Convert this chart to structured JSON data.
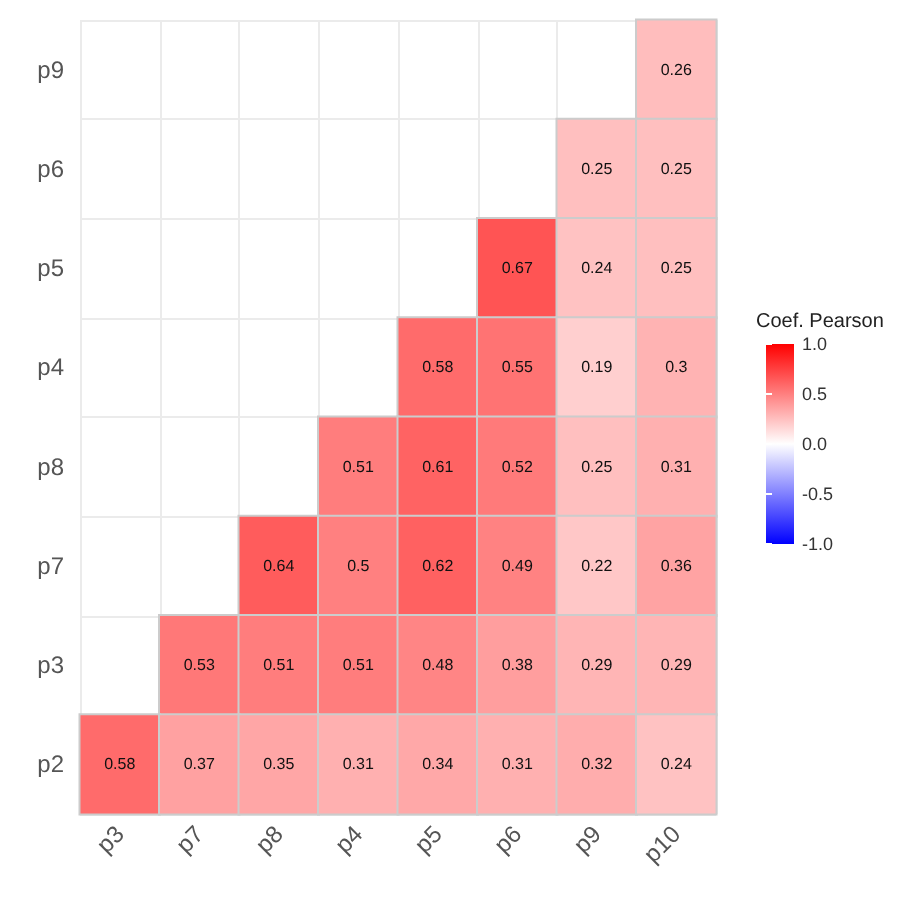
{
  "chart_data": {
    "type": "heatmap",
    "clabel": "Coef. Pearson",
    "categories": [
      "p3",
      "p7",
      "p8",
      "p4",
      "p5",
      "p6",
      "p9",
      "p10"
    ],
    "y_categories": [
      "p9",
      "p6",
      "p5",
      "p4",
      "p8",
      "p7",
      "p3",
      "p2"
    ],
    "cells": [
      [
        null,
        null,
        null,
        null,
        null,
        null,
        null,
        0.26
      ],
      [
        null,
        null,
        null,
        null,
        null,
        null,
        0.25,
        0.25
      ],
      [
        null,
        null,
        null,
        null,
        null,
        0.67,
        0.24,
        0.25
      ],
      [
        null,
        null,
        null,
        null,
        0.58,
        0.55,
        0.19,
        0.3
      ],
      [
        null,
        null,
        null,
        0.51,
        0.61,
        0.52,
        0.25,
        0.31
      ],
      [
        null,
        null,
        0.64,
        0.5,
        0.62,
        0.49,
        0.22,
        0.36
      ],
      [
        null,
        0.53,
        0.51,
        0.51,
        0.48,
        0.38,
        0.29,
        0.29
      ],
      [
        0.58,
        0.37,
        0.35,
        0.31,
        0.34,
        0.31,
        0.32,
        0.24
      ]
    ],
    "clim": [
      -1,
      1
    ],
    "cticks": [
      {
        "value": -1,
        "label": "-1.0"
      },
      -0.5,
      {
        "value": 0,
        "label": "0.0"
      },
      0.5,
      {
        "value": 1,
        "label": "1.0"
      }
    ],
    "colors": [
      "#0000ff",
      "#ffffff",
      "#ff0000"
    ],
    "data_labels": true,
    "grid": true
  }
}
